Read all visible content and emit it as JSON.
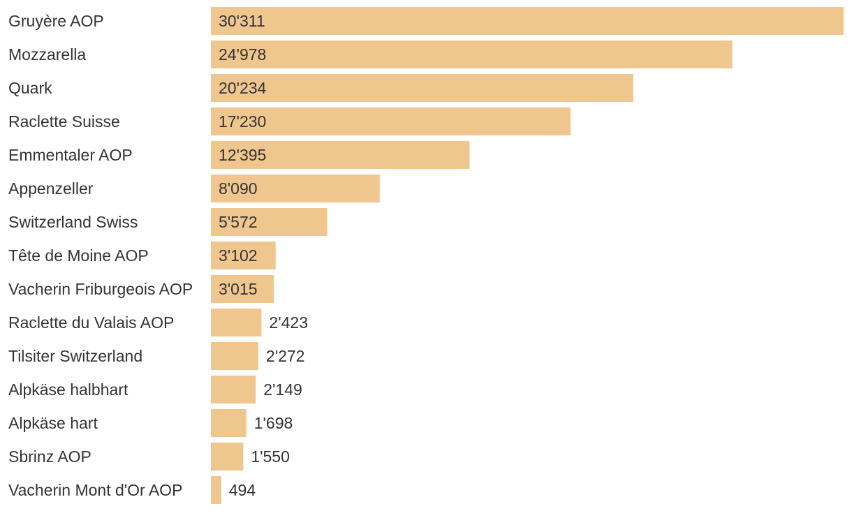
{
  "chart_data": {
    "type": "bar",
    "orientation": "horizontal",
    "title": "",
    "xlabel": "",
    "ylabel": "",
    "grid": false,
    "bar_color": "#F0C68F",
    "text_color": "#333333",
    "categories": [
      "Gruyère AOP",
      "Mozzarella",
      "Quark",
      "Raclette Suisse",
      "Emmentaler AOP",
      "Appenzeller",
      "Switzerland Swiss",
      "Tête de Moine AOP",
      "Vacherin Friburgeois AOP",
      "Raclette du Valais AOP",
      "Tilsiter Switzerland",
      "Alpkäse halbhart",
      "Alpkäse hart",
      "Sbrinz AOP",
      "Vacherin Mont d'Or AOP"
    ],
    "values": [
      30311,
      24978,
      20234,
      17230,
      12395,
      8090,
      5572,
      3102,
      3015,
      2423,
      2272,
      2149,
      1698,
      1550,
      494
    ],
    "value_labels": [
      "30'311",
      "24'978",
      "20'234",
      "17'230",
      "12'395",
      "8'090",
      "5'572",
      "3'102",
      "3'015",
      "2'423",
      "2'272",
      "2'149",
      "1'698",
      "1'550",
      "494"
    ],
    "xlim": [
      0,
      30311
    ]
  }
}
